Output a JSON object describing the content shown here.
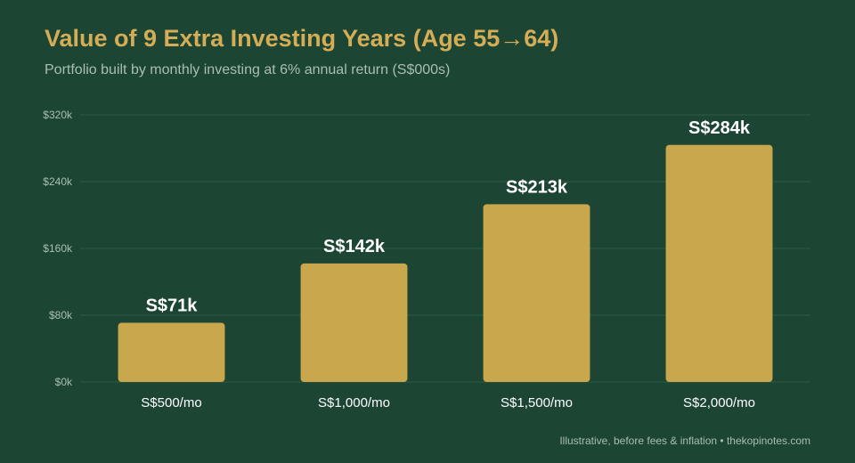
{
  "title": "Value of 9 Extra Investing Years (Age 55→64)",
  "subtitle": "Portfolio built by monthly investing at 6% annual return (S$000s)",
  "footer": "Illustrative, before fees & inflation • thekopinotes.com",
  "colors": {
    "background": "#1c4533",
    "bar": "#c9a74c",
    "title": "#d4ad56",
    "grid": "#2e5a45"
  },
  "chart_data": {
    "type": "bar",
    "categories": [
      "S$500/mo",
      "S$1,000/mo",
      "S$1,500/mo",
      "S$2,000/mo"
    ],
    "values": [
      71,
      142,
      213,
      284
    ],
    "value_labels": [
      "S$71k",
      "S$142k",
      "S$213k",
      "S$284k"
    ],
    "ylim": [
      0,
      320
    ],
    "yticks": [
      0,
      80,
      160,
      240,
      320
    ],
    "ytick_labels": [
      "$0k",
      "$80k",
      "$160k",
      "$240k",
      "$320k"
    ],
    "xlabel": "",
    "ylabel": "",
    "grid": true,
    "legend": "none"
  }
}
